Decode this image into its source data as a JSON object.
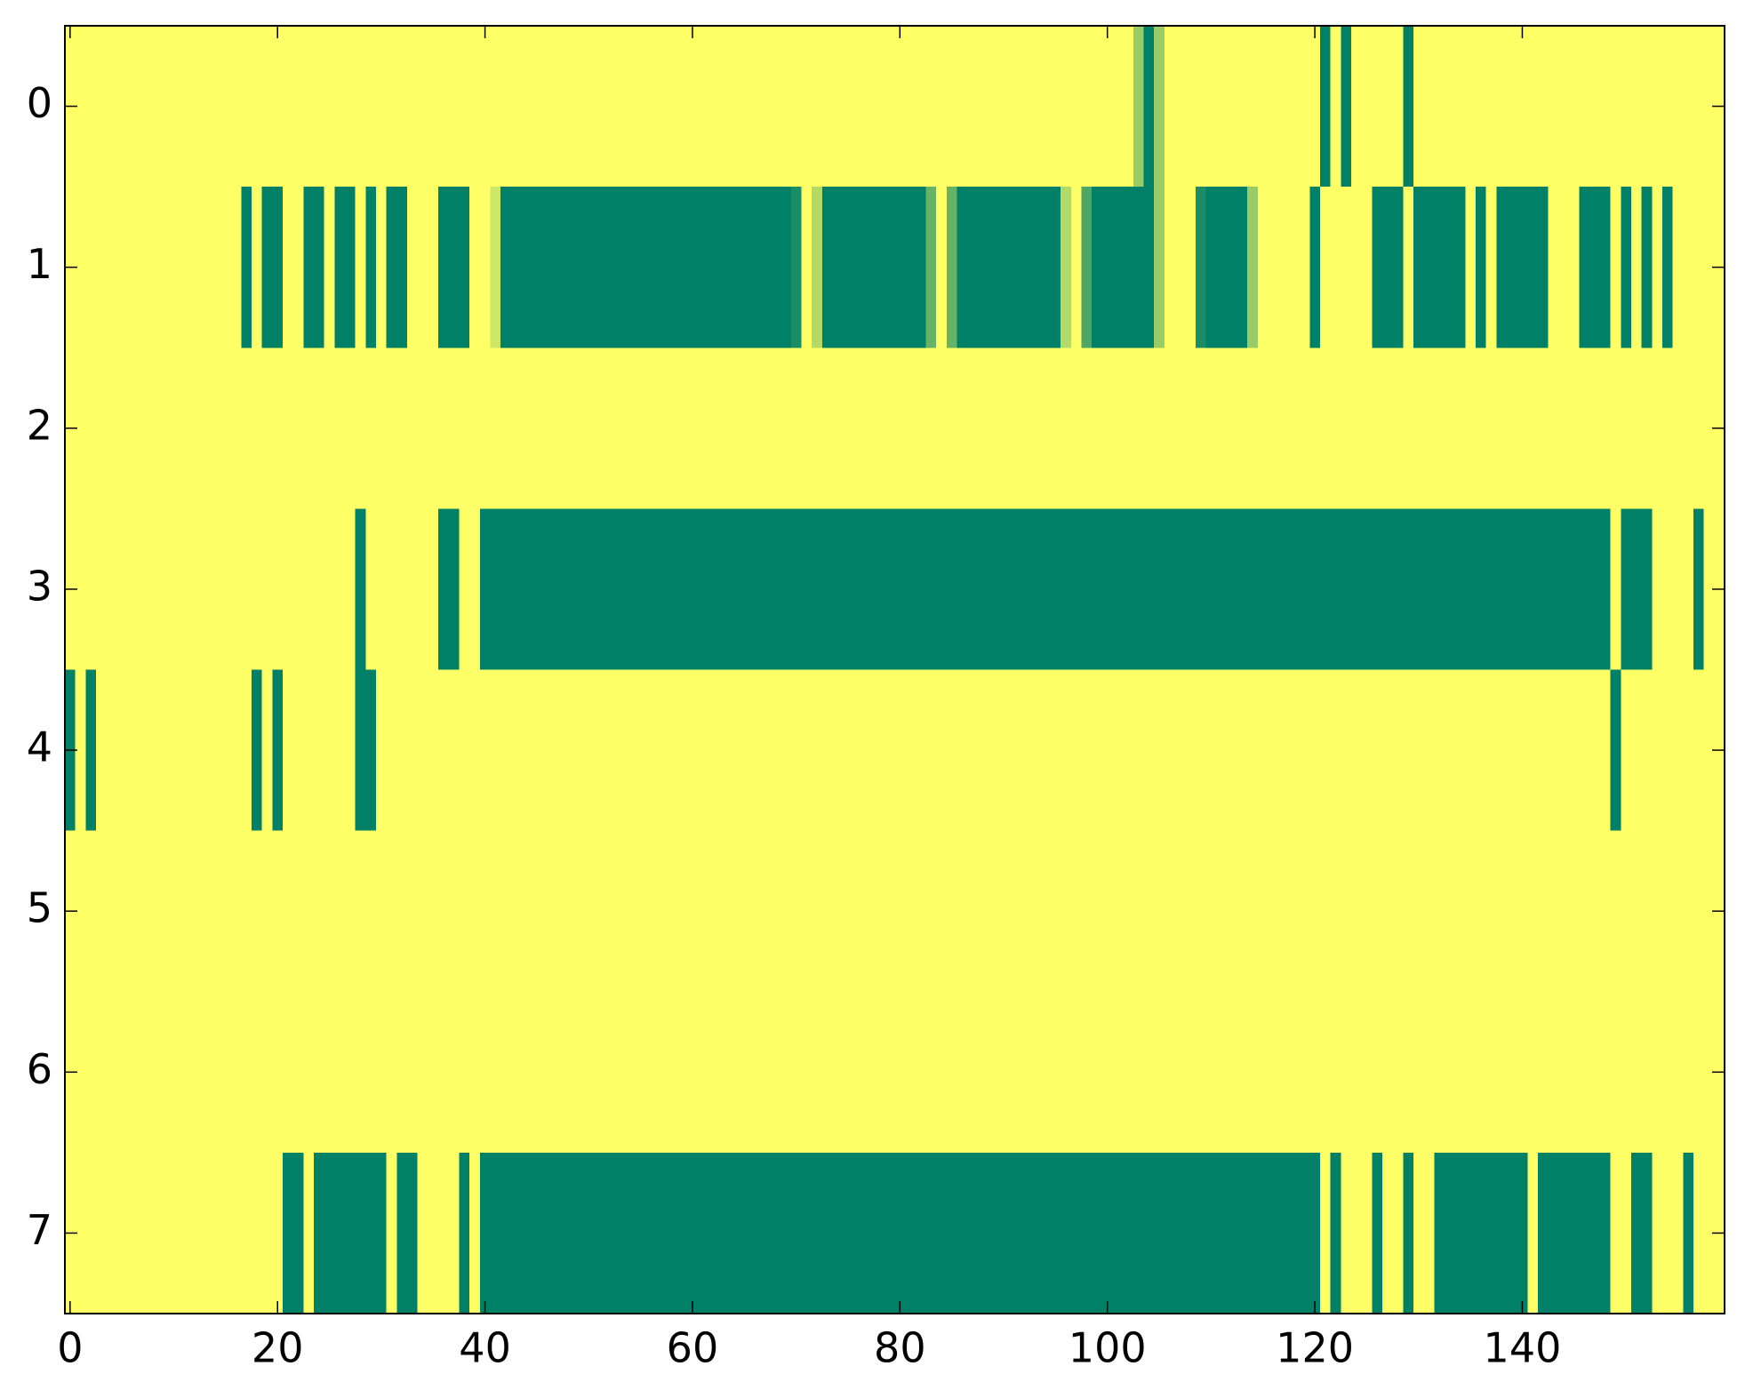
{
  "chart_data": {
    "type": "heatmap",
    "colormap": "summer",
    "xlim": [
      -0.5,
      159.5
    ],
    "ylim": [
      7.5,
      -0.5
    ],
    "xticks": [
      0,
      20,
      40,
      60,
      80,
      100,
      120,
      140
    ],
    "yticks": [
      0,
      1,
      2,
      3,
      4,
      5,
      6,
      7
    ],
    "z": [
      [
        1,
        1,
        1,
        1,
        1,
        1,
        1,
        1,
        1,
        1,
        1,
        1,
        1,
        1,
        1,
        1,
        1,
        1,
        1,
        1,
        1,
        1,
        1,
        1,
        1,
        1,
        1,
        1,
        1,
        1,
        1,
        1,
        1,
        1,
        1,
        1,
        1,
        1,
        1,
        1,
        1,
        1,
        1,
        1,
        1,
        1,
        1,
        1,
        1,
        1,
        1,
        1,
        1,
        1,
        1,
        1,
        1,
        1,
        1,
        1,
        1,
        1,
        1,
        1,
        1,
        1,
        1,
        1,
        1,
        1,
        1,
        1,
        1,
        1,
        1,
        1,
        1,
        1,
        1,
        1,
        1,
        1,
        1,
        1,
        1,
        1,
        1,
        1,
        1,
        1,
        1,
        1,
        1,
        1,
        1,
        1,
        1,
        1,
        1,
        1,
        1,
        1,
        1,
        0.6,
        0,
        0.6,
        1,
        1,
        1,
        1,
        1,
        1,
        1,
        1,
        1,
        1,
        1,
        1,
        1,
        1,
        1,
        0,
        1,
        0,
        1,
        1,
        1,
        1,
        1,
        0,
        1,
        1,
        1,
        1,
        1,
        1,
        1,
        1,
        1,
        1,
        1,
        1,
        1,
        1,
        1,
        1,
        1,
        1,
        1,
        1,
        1,
        1,
        1,
        1,
        1,
        1,
        1,
        1,
        1,
        1
      ],
      [
        1,
        1,
        1,
        1,
        1,
        1,
        1,
        1,
        1,
        1,
        1,
        1,
        1,
        1,
        1,
        1,
        1,
        0,
        1,
        0,
        0,
        1,
        1,
        0,
        0,
        1,
        0,
        0,
        1,
        0,
        1,
        0,
        0,
        1,
        1,
        1,
        0,
        0,
        0,
        1,
        1,
        0.8,
        0,
        0,
        0,
        0,
        0,
        0,
        0,
        0,
        0,
        0,
        0,
        0,
        0,
        0,
        0,
        0,
        0,
        0,
        0,
        0,
        0,
        0,
        0,
        0,
        0,
        0,
        0,
        0,
        0.1,
        1,
        0.7,
        0,
        0,
        0,
        0,
        0,
        0,
        0,
        0,
        0,
        0,
        0.4,
        1,
        0.4,
        0,
        0,
        0,
        0,
        0,
        0,
        0,
        0,
        0,
        0,
        0.7,
        1,
        0.3,
        0,
        0,
        0,
        0,
        0,
        0,
        0.6,
        1,
        1,
        1,
        0.1,
        0,
        0,
        0,
        0,
        0.6,
        1,
        1,
        1,
        1,
        1,
        0,
        1,
        1,
        1,
        1,
        1,
        0,
        0,
        0,
        1,
        0,
        0,
        0,
        0,
        0,
        1,
        0,
        1,
        0,
        0,
        0,
        0,
        0,
        1,
        1,
        1,
        0,
        0,
        0,
        1,
        0,
        1,
        0,
        1,
        0,
        1,
        1,
        1,
        1,
        1
      ],
      [
        1,
        1,
        1,
        1,
        1,
        1,
        1,
        1,
        1,
        1,
        1,
        1,
        1,
        1,
        1,
        1,
        1,
        1,
        1,
        1,
        1,
        1,
        1,
        1,
        1,
        1,
        1,
        1,
        1,
        1,
        1,
        1,
        1,
        1,
        1,
        1,
        1,
        1,
        1,
        1,
        1,
        1,
        1,
        1,
        1,
        1,
        1,
        1,
        1,
        1,
        1,
        1,
        1,
        1,
        1,
        1,
        1,
        1,
        1,
        1,
        1,
        1,
        1,
        1,
        1,
        1,
        1,
        1,
        1,
        1,
        1,
        1,
        1,
        1,
        1,
        1,
        1,
        1,
        1,
        1,
        1,
        1,
        1,
        1,
        1,
        1,
        1,
        1,
        1,
        1,
        1,
        1,
        1,
        1,
        1,
        1,
        1,
        1,
        1,
        1,
        1,
        1,
        1,
        1,
        1,
        1,
        1,
        1,
        1,
        1,
        1,
        1,
        1,
        1,
        1,
        1,
        1,
        1,
        1,
        1,
        1,
        1,
        1,
        1,
        1,
        1,
        1,
        1,
        1,
        1,
        1,
        1,
        1,
        1,
        1,
        1,
        1,
        1,
        1,
        1,
        1,
        1,
        1,
        1,
        1,
        1,
        1,
        1,
        1,
        1,
        1,
        1,
        1,
        1,
        1,
        1,
        1,
        1,
        1,
        1
      ],
      [
        1,
        1,
        1,
        1,
        1,
        1,
        1,
        1,
        1,
        1,
        1,
        1,
        1,
        1,
        1,
        1,
        1,
        1,
        1,
        1,
        1,
        1,
        1,
        1,
        1,
        1,
        1,
        1,
        0,
        1,
        1,
        1,
        1,
        1,
        1,
        1,
        0,
        0,
        1,
        1,
        0,
        0,
        0,
        0,
        0,
        0,
        0,
        0,
        0,
        0,
        0,
        0,
        0,
        0,
        0,
        0,
        0,
        0,
        0,
        0,
        0,
        0,
        0,
        0,
        0,
        0,
        0,
        0,
        0,
        0,
        0,
        0,
        0,
        0,
        0,
        0,
        0,
        0,
        0,
        0,
        0,
        0,
        0,
        0,
        0,
        0,
        0,
        0,
        0,
        0,
        0,
        0,
        0,
        0,
        0,
        0,
        0,
        0,
        0,
        0,
        0,
        0,
        0,
        0,
        0,
        0,
        0,
        0,
        0,
        0,
        0,
        0,
        0,
        0,
        0,
        0,
        0,
        0,
        0,
        0,
        0,
        0,
        0,
        0,
        0,
        0,
        0,
        0,
        0,
        0,
        0,
        0,
        0,
        0,
        0,
        0,
        0,
        0,
        0,
        0,
        0,
        0,
        0,
        0,
        0,
        0,
        0,
        0,
        0,
        1,
        0,
        0,
        0,
        1,
        1,
        1,
        1,
        0,
        1,
        1
      ],
      [
        0,
        1,
        0,
        1,
        1,
        1,
        1,
        1,
        1,
        1,
        1,
        1,
        1,
        1,
        1,
        1,
        1,
        1,
        0,
        1,
        0,
        1,
        1,
        1,
        1,
        1,
        1,
        1,
        0,
        0,
        1,
        1,
        1,
        1,
        1,
        1,
        1,
        1,
        1,
        1,
        1,
        1,
        1,
        1,
        1,
        1,
        1,
        1,
        1,
        1,
        1,
        1,
        1,
        1,
        1,
        1,
        1,
        1,
        1,
        1,
        1,
        1,
        1,
        1,
        1,
        1,
        1,
        1,
        1,
        1,
        1,
        1,
        1,
        1,
        1,
        1,
        1,
        1,
        1,
        1,
        1,
        1,
        1,
        1,
        1,
        1,
        1,
        1,
        1,
        1,
        1,
        1,
        1,
        1,
        1,
        1,
        1,
        1,
        1,
        1,
        1,
        1,
        1,
        1,
        1,
        1,
        1,
        1,
        1,
        1,
        1,
        1,
        1,
        1,
        1,
        1,
        1,
        1,
        1,
        1,
        1,
        1,
        1,
        1,
        1,
        1,
        1,
        1,
        1,
        1,
        1,
        1,
        1,
        1,
        1,
        1,
        1,
        1,
        1,
        1,
        1,
        1,
        1,
        1,
        1,
        1,
        1,
        1,
        1,
        0,
        1,
        1,
        1,
        1,
        1,
        1,
        1,
        1,
        1,
        1
      ],
      [
        1,
        1,
        1,
        1,
        1,
        1,
        1,
        1,
        1,
        1,
        1,
        1,
        1,
        1,
        1,
        1,
        1,
        1,
        1,
        1,
        1,
        1,
        1,
        1,
        1,
        1,
        1,
        1,
        1,
        1,
        1,
        1,
        1,
        1,
        1,
        1,
        1,
        1,
        1,
        1,
        1,
        1,
        1,
        1,
        1,
        1,
        1,
        1,
        1,
        1,
        1,
        1,
        1,
        1,
        1,
        1,
        1,
        1,
        1,
        1,
        1,
        1,
        1,
        1,
        1,
        1,
        1,
        1,
        1,
        1,
        1,
        1,
        1,
        1,
        1,
        1,
        1,
        1,
        1,
        1,
        1,
        1,
        1,
        1,
        1,
        1,
        1,
        1,
        1,
        1,
        1,
        1,
        1,
        1,
        1,
        1,
        1,
        1,
        1,
        1,
        1,
        1,
        1,
        1,
        1,
        1,
        1,
        1,
        1,
        1,
        1,
        1,
        1,
        1,
        1,
        1,
        1,
        1,
        1,
        1,
        1,
        1,
        1,
        1,
        1,
        1,
        1,
        1,
        1,
        1,
        1,
        1,
        1,
        1,
        1,
        1,
        1,
        1,
        1,
        1,
        1,
        1,
        1,
        1,
        1,
        1,
        1,
        1,
        1,
        1,
        1,
        1,
        1,
        1,
        1,
        1,
        1,
        1,
        1,
        1
      ],
      [
        1,
        1,
        1,
        1,
        1,
        1,
        1,
        1,
        1,
        1,
        1,
        1,
        1,
        1,
        1,
        1,
        1,
        1,
        1,
        1,
        1,
        1,
        1,
        1,
        1,
        1,
        1,
        1,
        1,
        1,
        1,
        1,
        1,
        1,
        1,
        1,
        1,
        1,
        1,
        1,
        1,
        1,
        1,
        1,
        1,
        1,
        1,
        1,
        1,
        1,
        1,
        1,
        1,
        1,
        1,
        1,
        1,
        1,
        1,
        1,
        1,
        1,
        1,
        1,
        1,
        1,
        1,
        1,
        1,
        1,
        1,
        1,
        1,
        1,
        1,
        1,
        1,
        1,
        1,
        1,
        1,
        1,
        1,
        1,
        1,
        1,
        1,
        1,
        1,
        1,
        1,
        1,
        1,
        1,
        1,
        1,
        1,
        1,
        1,
        1,
        1,
        1,
        1,
        1,
        1,
        1,
        1,
        1,
        1,
        1,
        1,
        1,
        1,
        1,
        1,
        1,
        1,
        1,
        1,
        1,
        1,
        1,
        1,
        1,
        1,
        1,
        1,
        1,
        1,
        1,
        1,
        1,
        1,
        1,
        1,
        1,
        1,
        1,
        1,
        1,
        1,
        1,
        1,
        1,
        1,
        1,
        1,
        1,
        1,
        1,
        1,
        1,
        1,
        1,
        1,
        1,
        1,
        1,
        1,
        1
      ],
      [
        1,
        1,
        1,
        1,
        1,
        1,
        1,
        1,
        1,
        1,
        1,
        1,
        1,
        1,
        1,
        1,
        1,
        1,
        1,
        1,
        1,
        0,
        0,
        1,
        0,
        0,
        0,
        0,
        0,
        0,
        0,
        1,
        0,
        0,
        1,
        1,
        1,
        1,
        0,
        1,
        0,
        0,
        0,
        0,
        0,
        0,
        0,
        0,
        0,
        0,
        0,
        0,
        0,
        0,
        0,
        0,
        0,
        0,
        0,
        0,
        0,
        0,
        0,
        0,
        0,
        0,
        0,
        0,
        0,
        0,
        0,
        0,
        0,
        0,
        0,
        0,
        0,
        0,
        0,
        0,
        0,
        0,
        0,
        0,
        0,
        0,
        0,
        0,
        0,
        0,
        0,
        0,
        0,
        0,
        0,
        0,
        0,
        0,
        0,
        0,
        0,
        0,
        0,
        0,
        0,
        0,
        0,
        0,
        0,
        0,
        0,
        0,
        0,
        0,
        0,
        0,
        0,
        0,
        0,
        0,
        0,
        1,
        0,
        1,
        1,
        1,
        0,
        1,
        1,
        0,
        1,
        1,
        0,
        0,
        0,
        0,
        0,
        0,
        0,
        0,
        0,
        1,
        0,
        0,
        0,
        0,
        0,
        0,
        0,
        1,
        1,
        0,
        0,
        1,
        1,
        1,
        0,
        1,
        1,
        1
      ]
    ]
  }
}
